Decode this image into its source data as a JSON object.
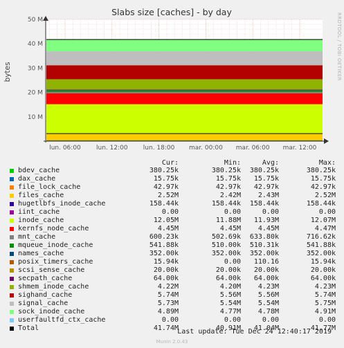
{
  "chart_data": {
    "type": "area",
    "stacked": true,
    "title": "Slabs size [caches] - by day",
    "ylabel": "bytes",
    "y_ticks": [
      "10 M",
      "20 M",
      "30 M",
      "40 M",
      "50 M"
    ],
    "y_tick_values": [
      10000000,
      20000000,
      30000000,
      40000000,
      50000000
    ],
    "ylim": [
      0,
      50000000
    ],
    "x_ticks": [
      "lun. 06:00",
      "lun. 12:00",
      "lun. 18:00",
      "mar. 00:00",
      "mar. 06:00",
      "mar. 12:00"
    ],
    "grid": true,
    "side_label": "RRDTOOL / TOBI OETIKER",
    "columns": [
      "Cur:",
      "Min:",
      "Avg:",
      "Max:"
    ],
    "series": [
      {
        "name": "bdev_cache",
        "color": "#00cc00",
        "cur": "380.25k",
        "min": "380.25k",
        "avg": "380.25k",
        "max": "380.25k",
        "value": 380250
      },
      {
        "name": "dax_cache",
        "color": "#0066b3",
        "cur": "15.75k",
        "min": "15.75k",
        "avg": "15.75k",
        "max": "15.75k",
        "value": 15750
      },
      {
        "name": "file_lock_cache",
        "color": "#ff8000",
        "cur": "42.97k",
        "min": "42.97k",
        "avg": "42.97k",
        "max": "42.97k",
        "value": 42970
      },
      {
        "name": "files_cache",
        "color": "#ffcc00",
        "cur": "2.52M",
        "min": "2.42M",
        "avg": "2.43M",
        "max": "2.52M",
        "value": 2520000
      },
      {
        "name": "hugetlbfs_inode_cache",
        "color": "#330099",
        "cur": "158.44k",
        "min": "158.44k",
        "avg": "158.44k",
        "max": "158.44k",
        "value": 158440
      },
      {
        "name": "iint_cache",
        "color": "#990099",
        "cur": "0.00",
        "min": "0.00",
        "avg": "0.00",
        "max": "0.00",
        "value": 0
      },
      {
        "name": "inode_cache",
        "color": "#ccff00",
        "cur": "12.05M",
        "min": "11.88M",
        "avg": "11.93M",
        "max": "12.07M",
        "value": 12050000
      },
      {
        "name": "kernfs_node_cache",
        "color": "#ff0000",
        "cur": "4.45M",
        "min": "4.45M",
        "avg": "4.45M",
        "max": "4.47M",
        "value": 4450000
      },
      {
        "name": "mnt_cache",
        "color": "#808080",
        "cur": "600.23k",
        "min": "502.69k",
        "avg": "633.80k",
        "max": "716.62k",
        "value": 600230
      },
      {
        "name": "mqueue_inode_cache",
        "color": "#008f00",
        "cur": "541.88k",
        "min": "510.00k",
        "avg": "510.31k",
        "max": "541.88k",
        "value": 541880
      },
      {
        "name": "names_cache",
        "color": "#00487d",
        "cur": "352.00k",
        "min": "352.00k",
        "avg": "352.00k",
        "max": "352.00k",
        "value": 352000
      },
      {
        "name": "posix_timers_cache",
        "color": "#b35a00",
        "cur": "15.94k",
        "min": "0.00",
        "avg": "110.16",
        "max": "15.94k",
        "value": 15940
      },
      {
        "name": "scsi_sense_cache",
        "color": "#b38f00",
        "cur": "20.00k",
        "min": "20.00k",
        "avg": "20.00k",
        "max": "20.00k",
        "value": 20000
      },
      {
        "name": "secpath_cache",
        "color": "#6b006b",
        "cur": "64.00k",
        "min": "64.00k",
        "avg": "64.00k",
        "max": "64.00k",
        "value": 64000
      },
      {
        "name": "shmem_inode_cache",
        "color": "#8fb300",
        "cur": "4.22M",
        "min": "4.20M",
        "avg": "4.23M",
        "max": "4.23M",
        "value": 4220000
      },
      {
        "name": "sighand_cache",
        "color": "#b30000",
        "cur": "5.74M",
        "min": "5.56M",
        "avg": "5.56M",
        "max": "5.74M",
        "value": 5740000
      },
      {
        "name": "signal_cache",
        "color": "#bebebe",
        "cur": "5.73M",
        "min": "5.54M",
        "avg": "5.54M",
        "max": "5.75M",
        "value": 5730000
      },
      {
        "name": "sock_inode_cache",
        "color": "#80ff80",
        "cur": "4.89M",
        "min": "4.77M",
        "avg": "4.78M",
        "max": "4.91M",
        "value": 4890000
      },
      {
        "name": "userfaultfd_ctx_cache",
        "color": "#80c9ff",
        "cur": "0.00",
        "min": "0.00",
        "avg": "0.00",
        "max": "0.00",
        "value": 0
      }
    ],
    "total": {
      "name": "Total",
      "color": "#000000",
      "cur": "41.74M",
      "min": "40.91M",
      "avg": "41.04M",
      "max": "41.77M",
      "value": 41740000
    }
  },
  "footer": {
    "last_update": "Last update: Tue Dec 24 12:40:17 2019",
    "munin": "Munin 2.0.43"
  }
}
